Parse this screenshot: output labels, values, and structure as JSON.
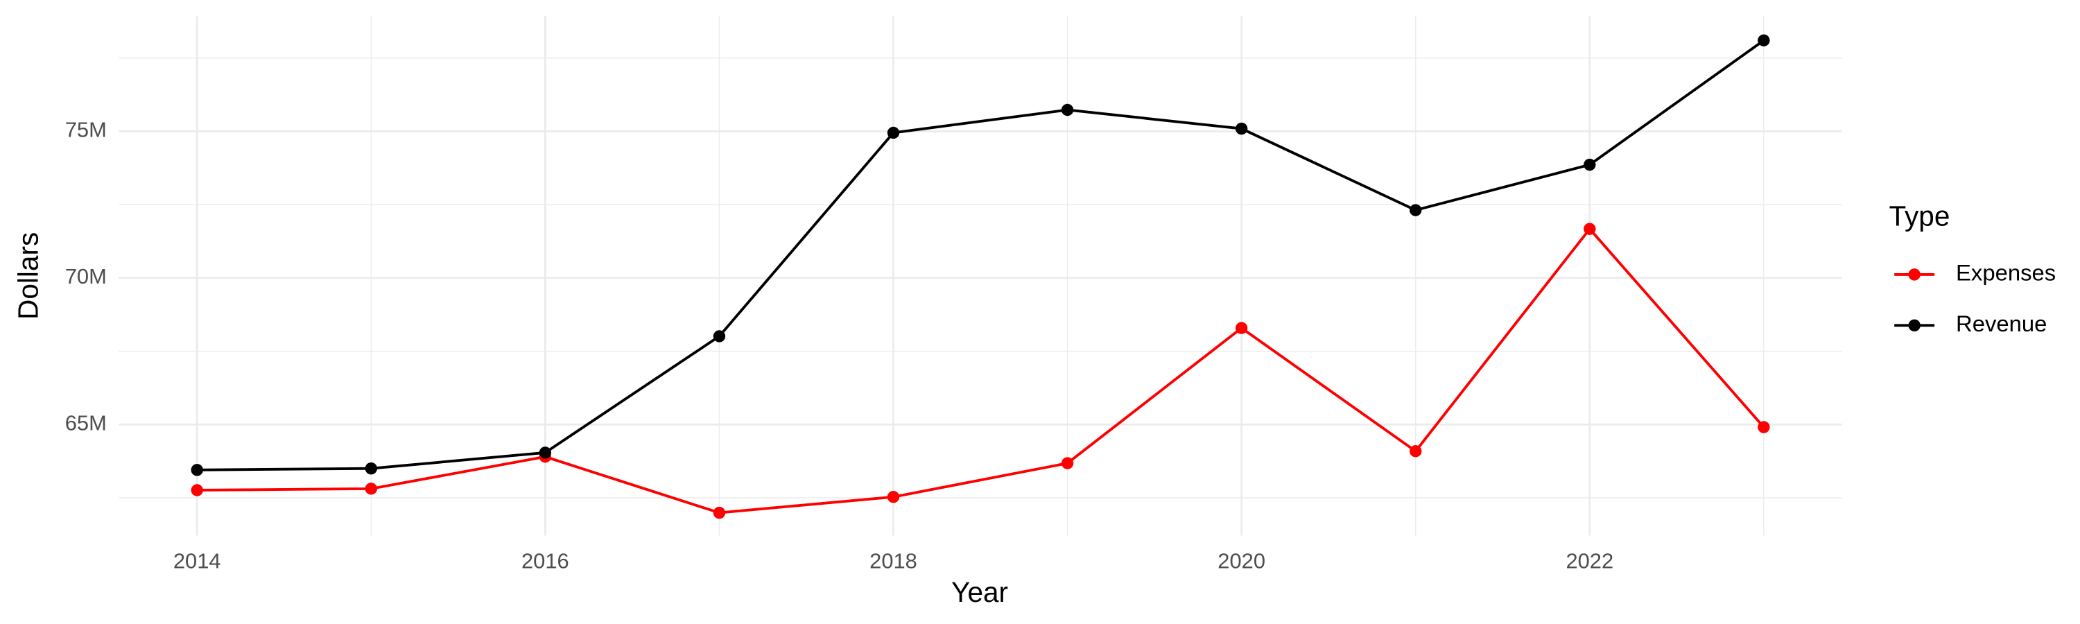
{
  "chart_data": {
    "type": "line",
    "x_label": "Year",
    "y_label": "Dollars",
    "legend_title": "Type",
    "x": [
      2014,
      2015,
      2016,
      2017,
      2018,
      2019,
      2020,
      2021,
      2022,
      2023
    ],
    "series": [
      {
        "name": "Expenses",
        "color": "#ff0000",
        "values": [
          62760000,
          62810000,
          63900000,
          61990000,
          62530000,
          63680000,
          68290000,
          64090000,
          71670000,
          64910000
        ]
      },
      {
        "name": "Revenue",
        "color": "#000000",
        "values": [
          63450000,
          63500000,
          64040000,
          68010000,
          74950000,
          75730000,
          75090000,
          72310000,
          73860000,
          78100000
        ]
      }
    ],
    "xlim": [
      2013.55,
      2023.45
    ],
    "xticks": [
      2014,
      2016,
      2018,
      2020,
      2022
    ],
    "ylim": [
      61210000,
      78930000
    ],
    "yticks": [
      {
        "value": 65000000,
        "label": "65M"
      },
      {
        "value": 70000000,
        "label": "70M"
      },
      {
        "value": 75000000,
        "label": "75M"
      }
    ],
    "grid": true,
    "legend": "right"
  }
}
